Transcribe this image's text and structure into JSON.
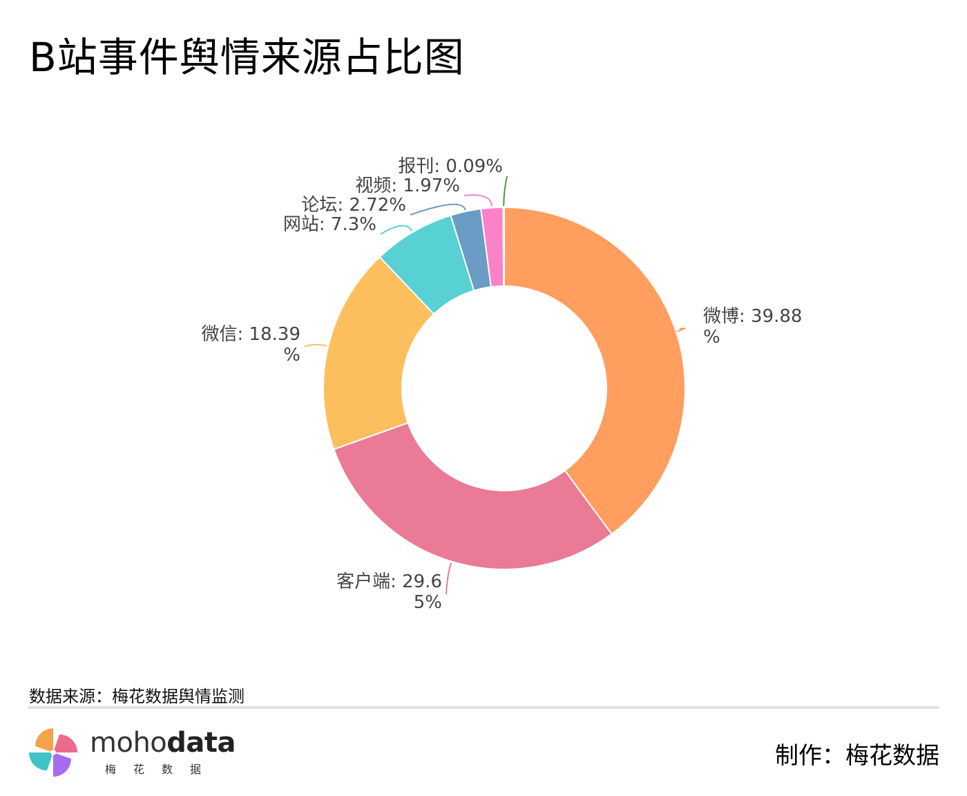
{
  "header": {
    "title": "B站事件舆情来源占比图"
  },
  "chart_data": {
    "type": "pie",
    "variant": "donut",
    "title": "B站事件舆情来源占比图",
    "slices": [
      {
        "name": "微博",
        "value": 39.88,
        "label_lines": [
          "微博: 39.88",
          "%"
        ],
        "color": "#FF9E5E"
      },
      {
        "name": "客户端",
        "value": 29.65,
        "label_lines": [
          "客户端: 29.6",
          "5%"
        ],
        "color": "#EB7A97"
      },
      {
        "name": "微信",
        "value": 18.39,
        "label_lines": [
          "微信: 18.39",
          "%"
        ],
        "color": "#FDBE5E"
      },
      {
        "name": "网站",
        "value": 7.3,
        "label_lines": [
          "网站: 7.3%"
        ],
        "color": "#57D1D3"
      },
      {
        "name": "论坛",
        "value": 2.72,
        "label_lines": [
          "论坛: 2.72%"
        ],
        "color": "#6A9CC6"
      },
      {
        "name": "视频",
        "value": 1.97,
        "label_lines": [
          "视频: 1.97%"
        ],
        "color": "#FB82C8"
      },
      {
        "name": "报刊",
        "value": 0.09,
        "label_lines": [
          "报刊: 0.09%"
        ],
        "color": "#4C9A3C"
      }
    ],
    "direction": "clockwise",
    "start": "top",
    "legend": "none"
  },
  "footer": {
    "source": "数据来源：梅花数据舆情监测",
    "logo_text_light": "moho",
    "logo_text_bold": "data",
    "logo_sub": "梅花数据",
    "maker": "制作：梅花数据"
  },
  "logo_colors": [
    "#F5A34A",
    "#EE6A8A",
    "#A66CF0",
    "#3FC2C8"
  ]
}
